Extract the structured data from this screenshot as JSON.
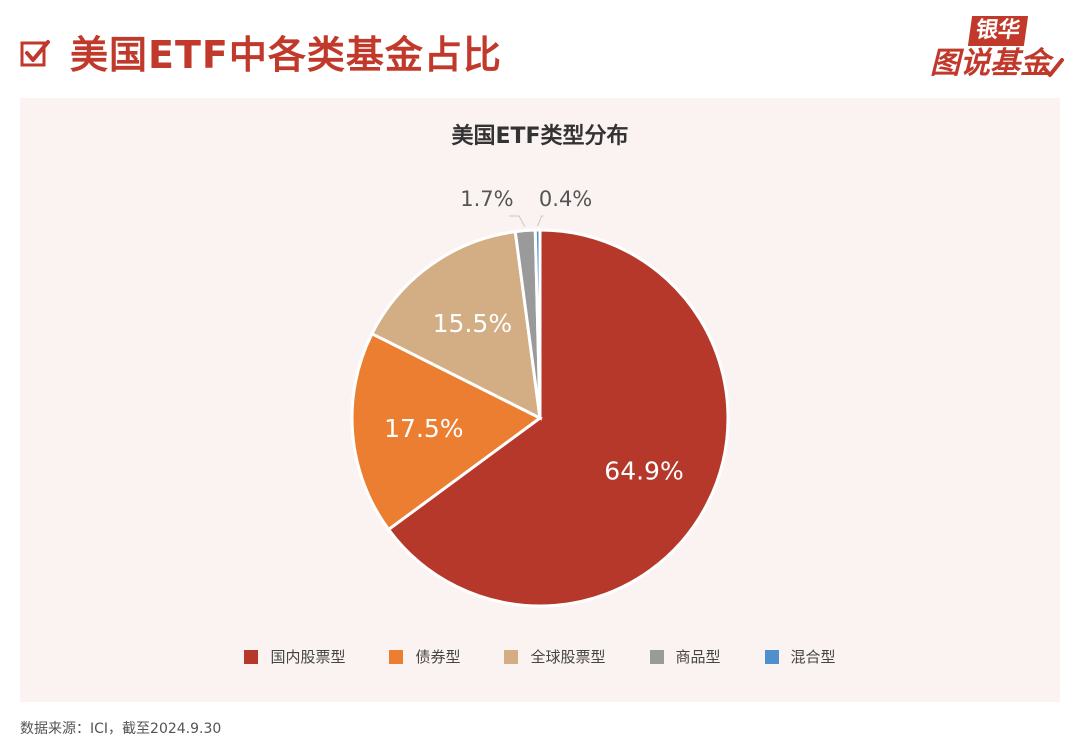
{
  "header": {
    "title": "美国ETF中各类基金占比"
  },
  "logo": {
    "top_text": "银华",
    "bottom_text": "图说基金"
  },
  "colors": {
    "brand": "#c0392b",
    "panel_bg": "#fbf3f1"
  },
  "chart_data": {
    "type": "pie",
    "title": "美国ETF类型分布",
    "legend_position": "bottom",
    "slices": [
      {
        "name": "国内股票型",
        "value": 64.9,
        "label": "64.9%",
        "color": "#b5382b"
      },
      {
        "name": "债券型",
        "value": 17.5,
        "label": "17.5%",
        "color": "#ec7e31"
      },
      {
        "name": "全球股票型",
        "value": 15.5,
        "label": "15.5%",
        "color": "#d3ad84"
      },
      {
        "name": "商品型",
        "value": 1.7,
        "label": "1.7%",
        "color": "#9a9a9a"
      },
      {
        "name": "混合型",
        "value": 0.4,
        "label": "0.4%",
        "color": "#4f8fcc"
      }
    ]
  },
  "footer": {
    "source": "数据来源：ICI，截至2024.9.30"
  }
}
